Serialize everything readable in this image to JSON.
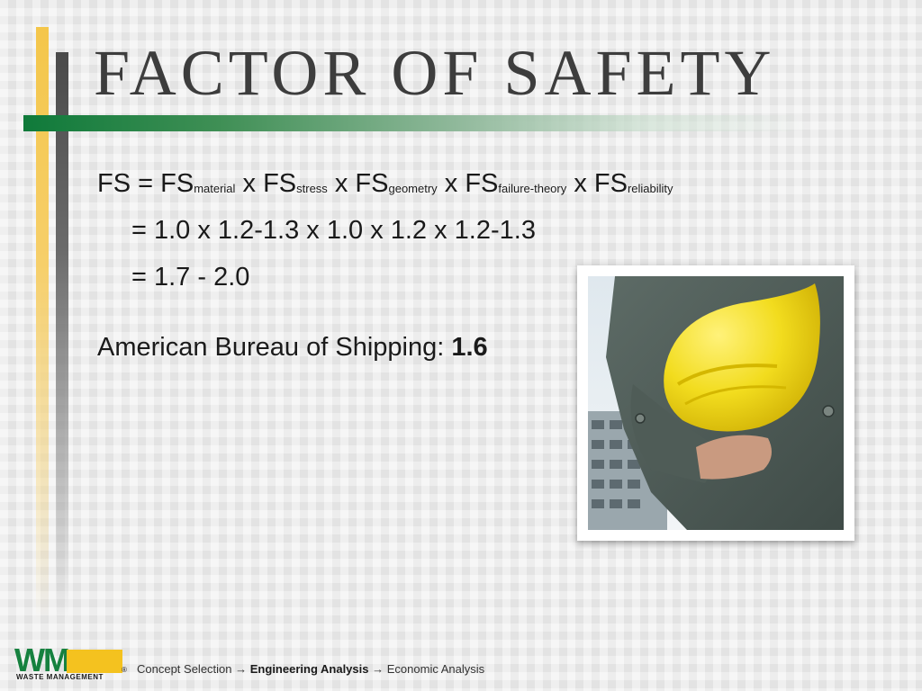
{
  "title": "FACTOR OF SAFETY",
  "equation": {
    "line1": {
      "lhs": "FS",
      "equals": "=",
      "op": "x",
      "base": "FS",
      "subscripts": [
        "material",
        "stress",
        "geometry",
        "failure-theory",
        "reliability"
      ]
    },
    "line2": "= 1.0 x 1.2-1.3 x 1.0 x 1.2 x 1.2-1.3",
    "line3": "= 1.7 - 2.0"
  },
  "abs": {
    "label": "American Bureau of Shipping: ",
    "value": "1.6"
  },
  "photo": {
    "subject": "hard-hat-photo"
  },
  "footer": {
    "logo_text": "WM",
    "logo_subtitle": "WASTE MANAGEMENT",
    "breadcrumb": {
      "step1": "Concept Selection",
      "step2": "Engineering Analysis",
      "step3": "Economic Analysis",
      "arrow": "→"
    }
  },
  "colors": {
    "accent_yellow": "#f4c64a",
    "accent_green": "#0f7a3a",
    "dark_gray": "#4a4a4a",
    "hat_yellow": "#f2dc1e"
  }
}
